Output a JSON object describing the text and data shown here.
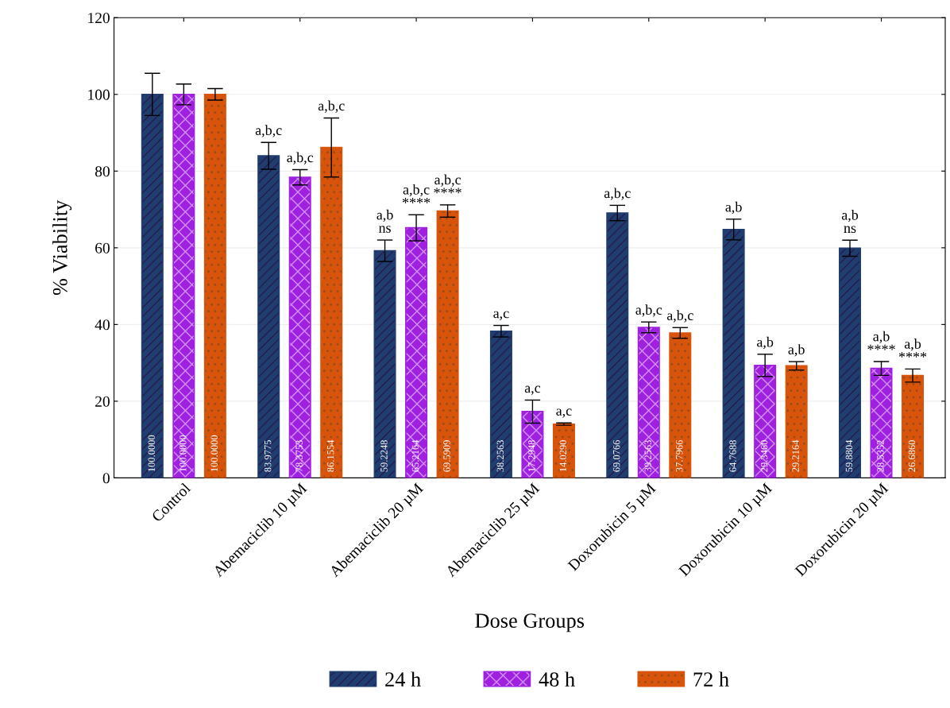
{
  "chart_data": {
    "type": "bar",
    "xlabel": "Dose Groups",
    "ylabel": "% Viability",
    "categories": [
      "Control",
      "Abemaciclib 10 µM",
      "Abemaciclib 20 µM",
      "Abemaciclib 25 µM",
      "Doxorubicin 5 µM",
      "Doxorubicin 10 µM",
      "Doxorubicin 20 µM"
    ],
    "series": [
      {
        "name": "24 h",
        "color": "#1f3d6e",
        "values": [
          100.0,
          83.9775,
          59.2248,
          38.2563,
          69.0766,
          64.7688,
          59.8804
        ],
        "errors": [
          5.5,
          3.5,
          2.8,
          1.5,
          2.0,
          2.7,
          2.1
        ],
        "value_labels": [
          "100.0000",
          "83.9775",
          "59.2248",
          "38.2563",
          "69.0766",
          "64.7688",
          "59.8804"
        ]
      },
      {
        "name": "48 h",
        "color": "#a020e0",
        "values": [
          100.0,
          78.3753,
          65.2164,
          17.2948,
          39.2563,
          29.346,
          28.5352
        ],
        "errors": [
          2.7,
          2.0,
          3.4,
          3.0,
          1.4,
          2.9,
          1.8
        ],
        "value_labels": [
          "100.0000",
          "78.3753",
          "65.2164",
          "17.2948",
          "39.2563",
          "29.3460",
          "28.5352"
        ]
      },
      {
        "name": "72 h",
        "color": "#d9540b",
        "values": [
          100.0,
          86.1554,
          69.5909,
          14.029,
          37.7966,
          29.2164,
          26.686
        ],
        "errors": [
          1.5,
          7.7,
          1.6,
          0.3,
          1.4,
          1.1,
          1.7
        ],
        "value_labels": [
          "100.0000",
          "86.1554",
          "69.5909",
          "14.0290",
          "37.7966",
          "29.2164",
          "26.6860"
        ]
      }
    ],
    "ylim": [
      0,
      120
    ],
    "yticks": [
      0,
      20,
      40,
      60,
      80,
      100,
      120
    ],
    "grid": "y",
    "legend": "bottom",
    "annotations": [
      "a,b,c",
      "a,b,c",
      "a,b,c",
      "a,b\nns",
      "a,b,c\n****",
      "a,b,c\n****",
      "a,c",
      "a,c",
      "a,c",
      "a,b,c",
      "a,b,c",
      "a,b,c",
      "a,b",
      "a,b",
      "a,b",
      "a,b\nns",
      "a,b\n****",
      "a,b\n****"
    ]
  }
}
